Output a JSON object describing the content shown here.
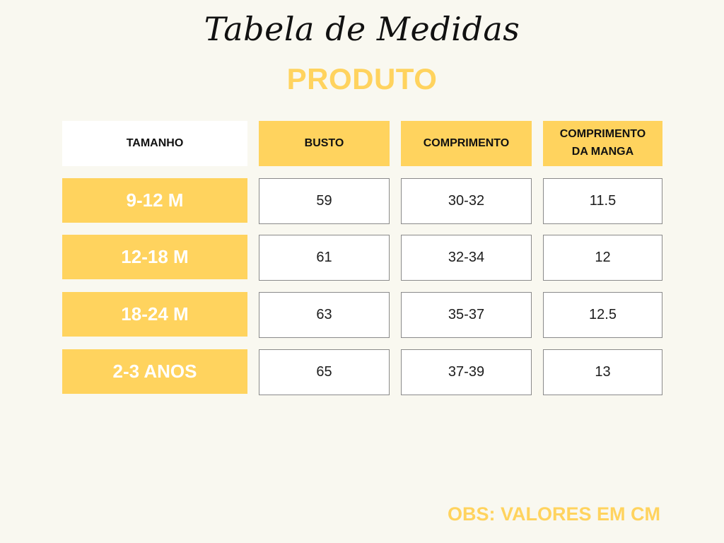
{
  "title": "Tabela de Medidas",
  "subtitle": "PRODUTO",
  "headers": [
    "TAMANHO",
    "BUSTO",
    "COMPRIMENTO",
    "COMPRIMENTO\nDA MANGA"
  ],
  "rows": [
    {
      "size": "9-12 M",
      "busto": "59",
      "comprimento": "30-32",
      "manga": "11.5"
    },
    {
      "size": "12-18 M",
      "busto": "61",
      "comprimento": "32-34",
      "manga": "12"
    },
    {
      "size": "18-24 M",
      "busto": "63",
      "comprimento": "35-37",
      "manga": "12.5"
    },
    {
      "size": "2-3 ANOS",
      "busto": "65",
      "comprimento": "37-39",
      "manga": "13"
    }
  ],
  "note": "OBS: VALORES EM CM",
  "colors": {
    "accent": "#ffd35e",
    "background": "#f9f8f0",
    "text": "#111111"
  }
}
